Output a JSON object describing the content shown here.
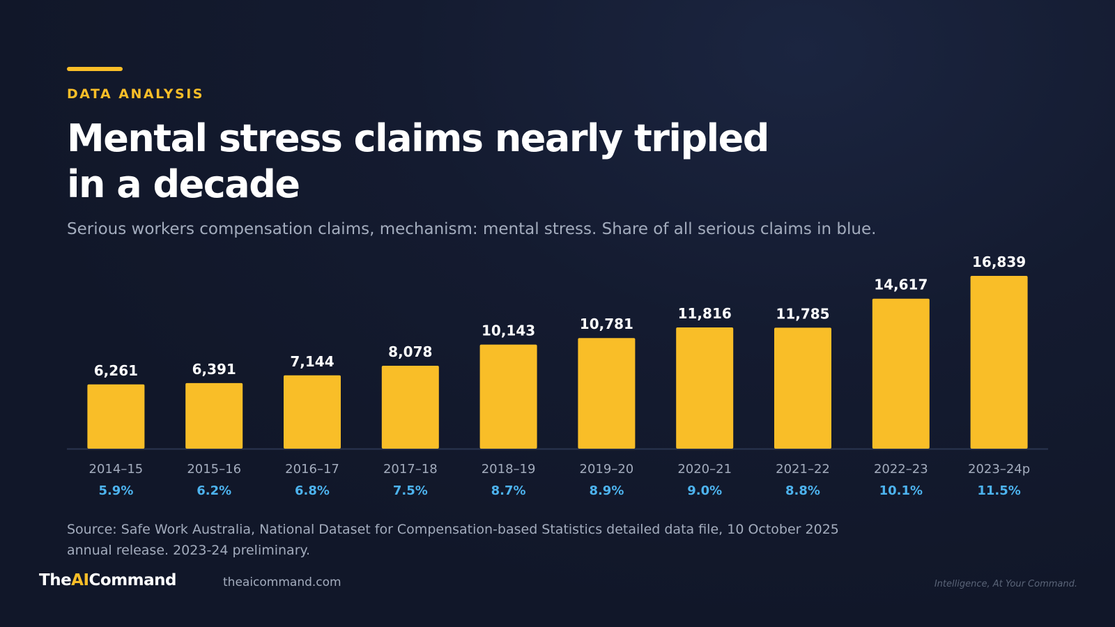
{
  "header": {
    "eyebrow": "DATA ANALYSIS",
    "title": "Mental stress claims nearly tripled in a decade",
    "subtitle": "Serious workers compensation claims, mechanism: mental stress. Share of all serious claims in blue."
  },
  "footer": {
    "source": "Source: Safe Work Australia, National Dataset for Compensation-based Statistics detailed data file, 10 October 2025 annual release. 2023-24 preliminary.",
    "logo_part1": "The",
    "logo_part2": "AI",
    "logo_part3": "Command",
    "url": "theaicommand.com",
    "tagline": "Intelligence, At Your Command."
  },
  "colors": {
    "bar": "#F9BE28",
    "share": "#4DB3EE",
    "accent": "#F9BE28",
    "axis": "#2A3550"
  },
  "chart_data": {
    "type": "bar",
    "categories": [
      "2014–15",
      "2015–16",
      "2016–17",
      "2017–18",
      "2018–19",
      "2019–20",
      "2020–21",
      "2021–22",
      "2022–23",
      "2023–24p"
    ],
    "series": [
      {
        "values": [
          6261,
          6391,
          7144,
          8078,
          10143,
          10781,
          11816,
          11785,
          14617,
          16839
        ],
        "value_labels": [
          "6,261",
          "6,391",
          "7,144",
          "8,078",
          "10,143",
          "10,781",
          "11,816",
          "11,785",
          "14,617",
          "16,839"
        ]
      }
    ],
    "share_of_all_serious_claims": [
      "5.9%",
      "6.2%",
      "6.8%",
      "7.5%",
      "8.7%",
      "8.9%",
      "9.0%",
      "8.8%",
      "10.1%",
      "11.5%"
    ],
    "ylim": [
      0,
      16839
    ],
    "grid": false,
    "legend": "none"
  }
}
